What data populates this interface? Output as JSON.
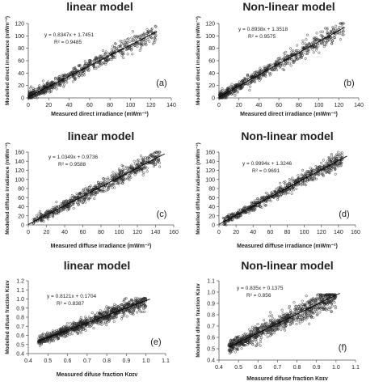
{
  "chart_data": [
    {
      "id": "a",
      "type": "scatter",
      "title": "linear model",
      "panel_label": "(a)",
      "xlabel": "Measured direct irradiance (mWm⁻²)",
      "ylabel": "Modelled direct irradiance (mWm⁻²)",
      "xlim": [
        0,
        140
      ],
      "ylim": [
        0,
        120
      ],
      "xticks": [
        "0",
        "20",
        "40",
        "60",
        "80",
        "100",
        "120",
        "140"
      ],
      "yticks": [
        "0",
        "20",
        "40",
        "60",
        "80",
        "100",
        "120"
      ],
      "equation": "y = 0.8347x + 1.7451",
      "r2": "R² = 0.9485",
      "fit": {
        "slope": 0.8347,
        "intercept": 1.7451,
        "x_range": [
          0,
          126
        ]
      },
      "scatter": {
        "n": 700,
        "x_range": [
          0.5,
          125
        ],
        "noise": 6.5,
        "dist": "skew",
        "seed": 11
      }
    },
    {
      "id": "b",
      "type": "scatter",
      "title": "Non-linear model",
      "panel_label": "(b)",
      "xlabel": "Measured direct irradiance (mWm⁻²)",
      "ylabel": "Modelled direct irradiance (mWm⁻²)",
      "xlim": [
        0,
        140
      ],
      "ylim": [
        0,
        120
      ],
      "xticks": [
        "0",
        "20",
        "40",
        "60",
        "80",
        "100",
        "120",
        "140"
      ],
      "yticks": [
        "0",
        "20",
        "40",
        "60",
        "80",
        "100",
        "120"
      ],
      "equation": "y = 0.8938x + 1.3518",
      "r2": "R² = 0.9575",
      "fit": {
        "slope": 0.8938,
        "intercept": 1.3518,
        "x_range": [
          0,
          126
        ]
      },
      "scatter": {
        "n": 700,
        "x_range": [
          0.5,
          125
        ],
        "noise": 6,
        "dist": "skew",
        "seed": 23
      }
    },
    {
      "id": "c",
      "type": "scatter",
      "title": "linear model",
      "panel_label": "(c)",
      "xlabel": "Measured diffuse irradiance (mWm⁻²)",
      "ylabel": "Modelled diffuse irradiance (mWm⁻²)",
      "xlim": [
        0,
        160
      ],
      "ylim": [
        0,
        160
      ],
      "xticks": [
        "0",
        "20",
        "40",
        "60",
        "80",
        "100",
        "120",
        "140",
        "160"
      ],
      "yticks": [
        "0",
        "20",
        "40",
        "60",
        "80",
        "100",
        "120",
        "140",
        "160"
      ],
      "equation": "y = 1.0349x + 0.9736",
      "r2": "R² = 0.9588",
      "fit": {
        "slope": 1.0349,
        "intercept": 0.9736,
        "x_range": [
          0,
          150
        ]
      },
      "scatter": {
        "n": 700,
        "x_range": [
          5,
          145
        ],
        "noise": 8,
        "dist": "uniform",
        "seed": 37
      }
    },
    {
      "id": "d",
      "type": "scatter",
      "title": "Non-linear model",
      "panel_label": "(d)",
      "xlabel": "Measured diffuse irradiance (mWm⁻²)",
      "ylabel": "Modelled diffuse irradiance (mWm⁻²)",
      "xlim": [
        0,
        160
      ],
      "ylim": [
        0,
        160
      ],
      "xticks": [
        "0",
        "20",
        "40",
        "60",
        "80",
        "100",
        "120",
        "140",
        "160"
      ],
      "yticks": [
        "0",
        "20",
        "40",
        "60",
        "80",
        "100",
        "120",
        "140",
        "160"
      ],
      "equation": "y = 0.9994x + 1.3246",
      "r2": "R² = 0.9691",
      "fit": {
        "slope": 0.9994,
        "intercept": 1.3246,
        "x_range": [
          0,
          150
        ]
      },
      "scatter": {
        "n": 700,
        "x_range": [
          5,
          145
        ],
        "noise": 7,
        "dist": "uniform",
        "seed": 41
      }
    },
    {
      "id": "e",
      "type": "scatter",
      "title": "linear model",
      "panel_label": "(e)",
      "xlabel": "Measured difuse fraction Kᴅɪᴠ",
      "ylabel": "Modelled difuse fraction Kᴅɪᴠ",
      "xlim": [
        0.4,
        1.1
      ],
      "ylim": [
        0.4,
        1.2
      ],
      "xticks": [
        "0.4",
        "0.5",
        "0.6",
        "0.7",
        "0.8",
        "0.9",
        "1.0",
        "1.1"
      ],
      "yticks": [
        "0.4",
        "0.5",
        "0.6",
        "0.7",
        "0.8",
        "0.9",
        "1.0",
        "1.1",
        "1.2"
      ],
      "equation": "y = 0.8121x + 0.1704",
      "r2": "R² = 0.8387",
      "fit": {
        "slope": 0.8121,
        "intercept": 0.1704,
        "x_range": [
          0.45,
          1.02
        ]
      },
      "scatter": {
        "n": 900,
        "x_range": [
          0.45,
          1.0
        ],
        "noise": 0.04,
        "dist": "uniform",
        "clip_top": 1.01,
        "seed": 53
      }
    },
    {
      "id": "f",
      "type": "scatter",
      "title": "Non-linear model",
      "panel_label": "(f)",
      "xlabel": "Measured difuse fraction Kᴅɪᴠ",
      "ylabel": "Modelled  difuse fraction Kᴅɪᴠ",
      "xlim": [
        0.4,
        1.1
      ],
      "ylim": [
        0.4,
        1.1
      ],
      "xticks": [
        "0.4",
        "0.5",
        "0.6",
        "0.7",
        "0.8",
        "0.9",
        "1.0",
        "1.1"
      ],
      "yticks": [
        "0.4",
        "0.5",
        "0.6",
        "0.7",
        "0.8",
        "0.9",
        "1.0",
        "1.1"
      ],
      "equation": "y = 0.835x + 0.1375",
      "r2": "R² = 0.856",
      "fit": {
        "slope": 0.835,
        "intercept": 0.1375,
        "x_range": [
          0.45,
          1.02
        ]
      },
      "scatter": {
        "n": 900,
        "x_range": [
          0.45,
          1.0
        ],
        "noise": 0.045,
        "dist": "uniform",
        "clip_top": 0.98,
        "seed": 67
      }
    }
  ]
}
